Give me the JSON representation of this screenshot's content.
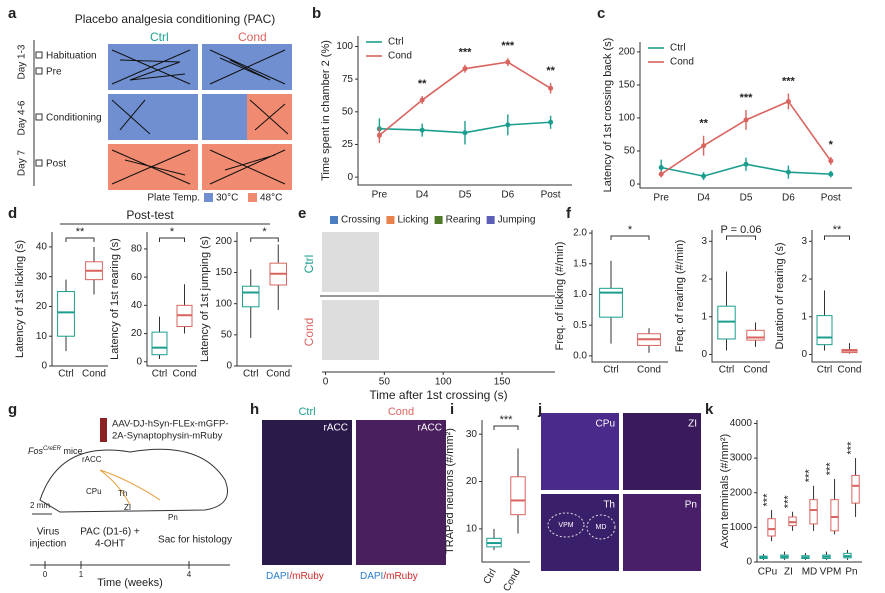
{
  "figure": {
    "panel_labels": [
      "a",
      "b",
      "c",
      "d",
      "e",
      "f",
      "g",
      "h",
      "i",
      "j",
      "k"
    ],
    "a": {
      "title": "Placebo analgesia conditioning (PAC)",
      "groups": [
        "Ctrl",
        "Cond"
      ],
      "days": [
        "Day 1-3",
        "Day 4-6",
        "Day 7"
      ],
      "phases": [
        "Habituation",
        "Pre",
        "Conditioning",
        "Post"
      ],
      "legend_title": "Plate Temp.",
      "legend": [
        "30°C",
        "48°C"
      ]
    },
    "d_title": "Post-test",
    "g": {
      "virus": [
        "AAV-DJ-hSyn-FLEx-mGFP-",
        "2A-Synaptophysin-mRuby"
      ],
      "mouse": "Fos",
      "mouse_sup": "CreER",
      "mouse_suffix": "mice",
      "regions": [
        "rACC",
        "CPu",
        "Th",
        "ZI",
        "Pn"
      ],
      "scale": "2 mm",
      "events": [
        [
          "Virus",
          "injection"
        ],
        [
          "PAC (D1-6) +",
          "4-OHT"
        ],
        [
          "Sac for histology"
        ]
      ],
      "ticks": [
        0,
        1,
        4
      ],
      "xlabel": "Time (weeks)"
    },
    "h": {
      "groups": [
        "Ctrl",
        "Cond"
      ],
      "region": "rACC",
      "stain": [
        "DAPI",
        "/mRuby"
      ]
    },
    "j": {
      "regions": [
        "CPu",
        "ZI",
        "Th",
        "Pn"
      ],
      "subregions": [
        "VPM",
        "MD"
      ]
    }
  },
  "chart_data": [
    {
      "type": "line",
      "ylabel": "Time spent in chamber 2 (%)",
      "categories": [
        "Pre",
        "D4",
        "D5",
        "D6",
        "Post"
      ],
      "series": [
        {
          "name": "Ctrl",
          "color": "#1b9e8e",
          "values": [
            37,
            36,
            34,
            40,
            42
          ],
          "errors": [
            8,
            5,
            9,
            8,
            5
          ]
        },
        {
          "name": "Cond",
          "color": "#d9645f",
          "values": [
            32,
            59,
            83,
            88,
            68
          ],
          "errors": [
            6,
            3,
            3,
            3,
            4
          ]
        }
      ],
      "annotations": [
        null,
        "**",
        "***",
        "***",
        "**"
      ],
      "ylim": [
        -6,
        108
      ],
      "yticks": [
        0,
        25,
        50,
        75,
        100
      ]
    },
    {
      "type": "line",
      "ylabel": "Latency of 1st crossing back (s)",
      "categories": [
        "Pre",
        "D4",
        "D5",
        "D6",
        "Post"
      ],
      "series": [
        {
          "name": "Ctrl",
          "color": "#1b9e8e",
          "values": [
            25,
            12,
            30,
            18,
            15
          ],
          "errors": [
            12,
            6,
            10,
            10,
            5
          ]
        },
        {
          "name": "Cond",
          "color": "#d9645f",
          "values": [
            15,
            58,
            97,
            125,
            35
          ],
          "errors": [
            5,
            15,
            15,
            12,
            6
          ]
        }
      ],
      "annotations": [
        null,
        "**",
        "***",
        "***",
        "*"
      ],
      "ylim": [
        -6,
        215
      ],
      "yticks": [
        0,
        50,
        100,
        150,
        200
      ]
    },
    {
      "type": "box",
      "ylabel": "Latency of 1st licking (s)",
      "categories": [
        "Ctrl",
        "Cond"
      ],
      "colors": [
        "#1b9e8e",
        "#d9645f"
      ],
      "boxes": [
        {
          "min": 5,
          "q1": 10,
          "median": 18,
          "q3": 25,
          "max": 29
        },
        {
          "min": 24,
          "q1": 29,
          "median": 32,
          "q3": 35,
          "max": 40
        }
      ],
      "annotation": "**",
      "ylim": [
        0,
        45
      ],
      "yticks": [
        0,
        10,
        20,
        30,
        40
      ]
    },
    {
      "type": "box",
      "ylabel": "Latency of 1st rearing (s)",
      "categories": [
        "Ctrl",
        "Cond"
      ],
      "colors": [
        "#1b9e8e",
        "#d9645f"
      ],
      "boxes": [
        {
          "min": 2,
          "q1": 5,
          "median": 10,
          "q3": 21,
          "max": 32
        },
        {
          "min": 20,
          "q1": 25,
          "median": 33,
          "q3": 40,
          "max": 55
        }
      ],
      "annotation": "*",
      "ylim": [
        -3,
        92
      ],
      "yticks": [
        0,
        20,
        40,
        60,
        80
      ]
    },
    {
      "type": "box",
      "ylabel": "Latency of 1st jumping (s)",
      "categories": [
        "Ctrl",
        "Cond"
      ],
      "colors": [
        "#1b9e8e",
        "#d9645f"
      ],
      "boxes": [
        {
          "min": 45,
          "q1": 95,
          "median": 118,
          "q3": 128,
          "max": 155
        },
        {
          "min": 90,
          "q1": 130,
          "median": 148,
          "q3": 165,
          "max": 195
        }
      ],
      "annotation": "*",
      "ylim": [
        0,
        215
      ],
      "yticks": [
        0,
        50,
        100,
        150,
        200
      ]
    },
    {
      "type": "box",
      "ylabel": "Freq. of licking (#/min)",
      "categories": [
        "Ctrl",
        "Cond"
      ],
      "colors": [
        "#1b9e8e",
        "#d9645f"
      ],
      "boxes": [
        {
          "min": 0.2,
          "q1": 0.63,
          "median": 1.03,
          "q3": 1.1,
          "max": 1.55
        },
        {
          "min": 0.05,
          "q1": 0.17,
          "median": 0.27,
          "q3": 0.36,
          "max": 0.45
        }
      ],
      "annotation": "*",
      "ylim": [
        -0.1,
        2.05
      ],
      "yticks": [
        {
          "value": 0,
          "label": "0.0"
        },
        0.5,
        {
          "value": 1,
          "label": "1.0"
        },
        1.5,
        {
          "value": 2,
          "label": "2.0"
        }
      ]
    },
    {
      "type": "box",
      "ylabel": "Freq. of rearing (#/min)",
      "categories": [
        "Ctrl",
        "Cond"
      ],
      "colors": [
        "#1b9e8e",
        "#d9645f"
      ],
      "boxes": [
        {
          "min": 0.1,
          "q1": 0.41,
          "median": 0.87,
          "q3": 1.28,
          "max": 2.2
        },
        {
          "min": 0.2,
          "q1": 0.38,
          "median": 0.45,
          "q3": 0.64,
          "max": 0.85
        }
      ],
      "annotation": "P = 0.06",
      "ylim": [
        -0.2,
        3.3
      ],
      "yticks": [
        0,
        1,
        2,
        3
      ]
    },
    {
      "type": "box",
      "ylabel": "Duration of rearing (s)",
      "categories": [
        "Ctrl",
        "Cond"
      ],
      "colors": [
        "#1b9e8e",
        "#d9645f"
      ],
      "boxes": [
        {
          "min": 0.1,
          "q1": 0.26,
          "median": 0.45,
          "q3": 1.03,
          "max": 1.7
        },
        {
          "min": 0.02,
          "q1": 0.05,
          "median": 0.1,
          "q3": 0.13,
          "max": 0.3
        }
      ],
      "annotation": "**",
      "ylim": [
        -0.2,
        3.3
      ],
      "yticks": [
        0,
        1,
        2,
        3
      ]
    },
    {
      "type": "box",
      "ylabel": "TRAPed neurons (#/mm²)",
      "categories": [
        "Ctrl",
        "Cond"
      ],
      "colors": [
        "#1b9e8e",
        "#d9645f"
      ],
      "boxes": [
        {
          "min": 5.5,
          "q1": 6.2,
          "median": 7,
          "q3": 8,
          "max": 10
        },
        {
          "min": 9,
          "q1": 13,
          "median": 16,
          "q3": 21,
          "max": 27
        }
      ],
      "annotation": "***",
      "ylim": [
        3,
        33
      ],
      "yticks": [
        10,
        20,
        30
      ]
    },
    {
      "type": "grouped-box",
      "ylabel": "Axon terminals (#/mm²)",
      "categories": [
        "CPu",
        "ZI",
        "MD",
        "VPM",
        "Pn"
      ],
      "series": [
        {
          "color": "#1b9e8e",
          "boxes": [
            {
              "min": 60,
              "q1": 100,
              "median": 130,
              "q3": 170,
              "max": 230
            },
            {
              "min": 60,
              "q1": 110,
              "median": 150,
              "q3": 200,
              "max": 300
            },
            {
              "min": 60,
              "q1": 100,
              "median": 130,
              "q3": 180,
              "max": 260
            },
            {
              "min": 60,
              "q1": 100,
              "median": 150,
              "q3": 200,
              "max": 300
            },
            {
              "min": 60,
              "q1": 120,
              "median": 170,
              "q3": 250,
              "max": 350
            }
          ]
        },
        {
          "color": "#d9645f",
          "boxes": [
            {
              "min": 600,
              "q1": 750,
              "median": 950,
              "q3": 1250,
              "max": 1500
            },
            {
              "min": 900,
              "q1": 1050,
              "median": 1150,
              "q3": 1300,
              "max": 1450
            },
            {
              "min": 900,
              "q1": 1100,
              "median": 1500,
              "q3": 1800,
              "max": 2200
            },
            {
              "min": 800,
              "q1": 900,
              "median": 1300,
              "q3": 1800,
              "max": 2400
            },
            {
              "min": 1300,
              "q1": 1700,
              "median": 2200,
              "q3": 2500,
              "max": 3000
            }
          ]
        }
      ],
      "annotations": [
        "***",
        "***",
        "***",
        "***",
        "***"
      ],
      "ylim": [
        0,
        4100
      ],
      "yticks": [
        0,
        1000,
        2000,
        3000,
        4000
      ]
    },
    {
      "type": "raster",
      "xlabel": "Time after 1st crossing (s)",
      "groups": [
        "Ctrl",
        "Cond"
      ],
      "group_colors": [
        "#1b9e8e",
        "#d9645f"
      ],
      "series": [
        {
          "name": "Crossing",
          "color": "#4a7fc0"
        },
        {
          "name": "Licking",
          "color": "#e8814a"
        },
        {
          "name": "Rearing",
          "color": "#4f7a2a"
        },
        {
          "name": "Jumping",
          "color": "#5b5fb8"
        }
      ],
      "xlim": [
        -3,
        195
      ],
      "xticks": [
        0,
        50,
        100,
        150
      ]
    }
  ]
}
